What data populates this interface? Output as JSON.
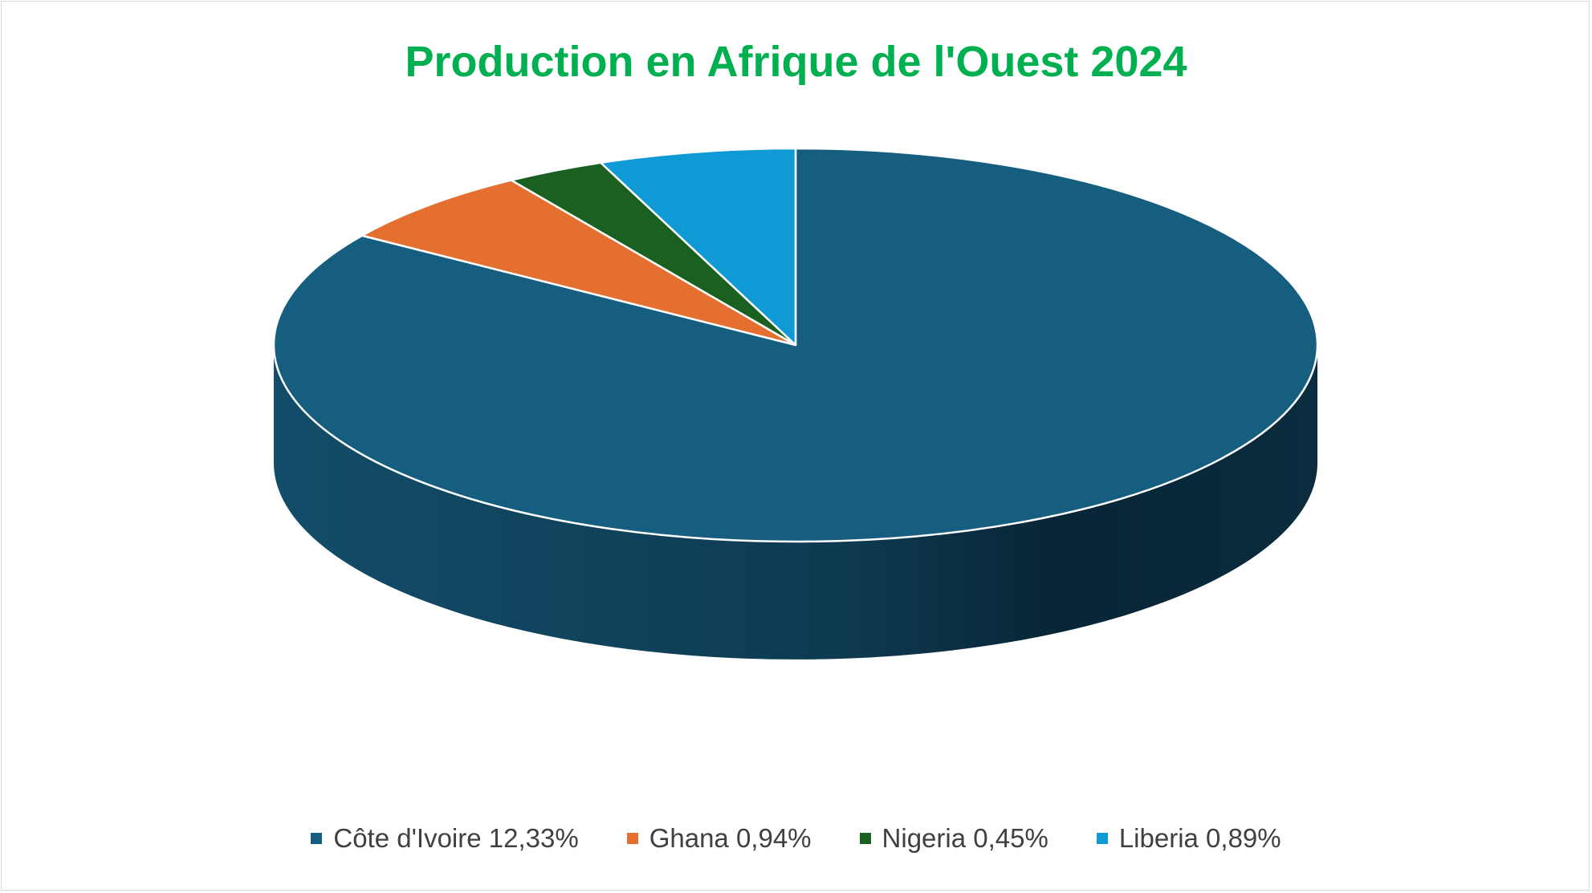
{
  "chart_data": {
    "type": "pie",
    "title": "Production en Afrique de l'Ouest 2024",
    "title_color": "#00B050",
    "style": "3d",
    "legend_position": "bottom",
    "series": [
      {
        "name": "Côte d'Ivoire 12,33%",
        "value": 12.33,
        "color": "#165E7F",
        "side_color": "#0F3F58"
      },
      {
        "name": "Ghana 0,94%",
        "value": 0.94,
        "color": "#E46F30",
        "side_color": "#A9501F"
      },
      {
        "name": "Nigeria 0,45%",
        "value": 0.45,
        "color": "#1A6121",
        "side_color": "#104016"
      },
      {
        "name": "Liberia 0,89%",
        "value": 0.89,
        "color": "#0F9AD6",
        "side_color": "#0A6B95"
      }
    ]
  }
}
